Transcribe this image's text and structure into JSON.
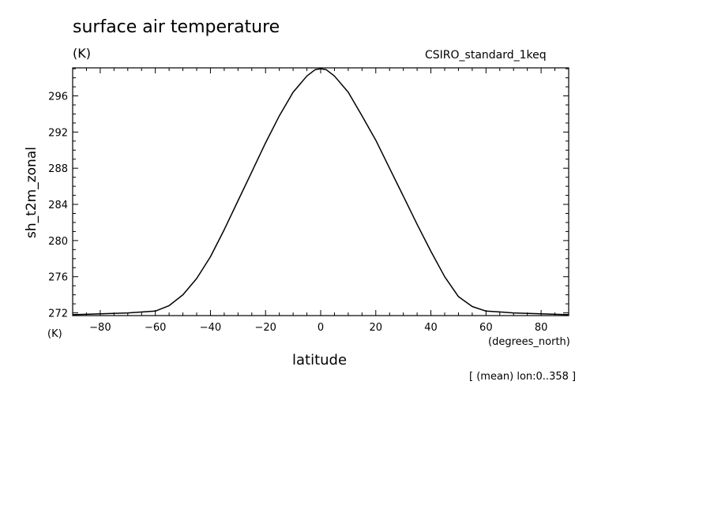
{
  "chart_data": {
    "type": "line",
    "title": "surface air temperature",
    "units": "(K)",
    "model": "CSIRO_standard_1keq",
    "ylabel": "sh_t2m_zonal",
    "ylabel_units": "(K)",
    "xlabel": "latitude",
    "xlabel_units": "(degrees_north)",
    "note": "[ (mean) lon:0..358 ]",
    "xlim": [
      -90,
      90
    ],
    "ylim": [
      271.7,
      299.1
    ],
    "x_ticks": [
      -80,
      -60,
      -40,
      -20,
      0,
      20,
      40,
      60,
      80
    ],
    "x_tick_labels": [
      "−80",
      "−60",
      "−40",
      "−20",
      "0",
      "20",
      "40",
      "60",
      "80"
    ],
    "y_ticks": [
      272,
      276,
      280,
      284,
      288,
      292,
      296
    ],
    "y_tick_labels": [
      "272",
      "276",
      "280",
      "284",
      "288",
      "292",
      "296"
    ],
    "series": [
      {
        "x": [
          -90,
          -80,
          -70,
          -60,
          -55,
          -50,
          -45,
          -40,
          -35,
          -30,
          -25,
          -20,
          -15,
          -10,
          -5,
          -2,
          0,
          2,
          5,
          10,
          15,
          20,
          25,
          30,
          35,
          40,
          45,
          50,
          55,
          60,
          65,
          70,
          80,
          90
        ],
        "y": [
          271.8,
          271.9,
          272.0,
          272.2,
          272.8,
          274.0,
          275.8,
          278.2,
          281.2,
          284.4,
          287.6,
          290.8,
          293.8,
          296.4,
          298.2,
          298.9,
          299.0,
          298.9,
          298.2,
          296.4,
          293.8,
          291.1,
          288.0,
          284.9,
          281.8,
          278.8,
          276.0,
          273.8,
          272.7,
          272.2,
          272.1,
          272.0,
          271.9,
          271.8
        ]
      }
    ]
  }
}
